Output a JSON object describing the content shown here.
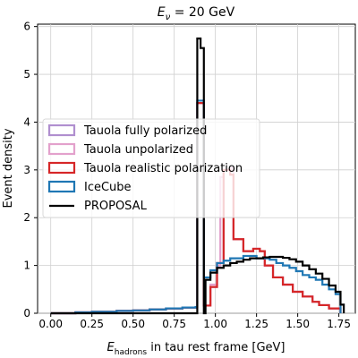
{
  "chart_data": {
    "type": "line",
    "title": "E_ν = 20 GeV",
    "title_main": "E",
    "title_sub": "ν",
    "title_rest": " = 20 GeV",
    "xlabel": "E_hadrons in tau rest frame [GeV]",
    "xlabel_main": "E",
    "xlabel_sub": "hadrons",
    "xlabel_rest": " in tau rest frame [GeV]",
    "ylabel": "Event density",
    "xlim": [
      -0.08,
      1.85
    ],
    "ylim": [
      0,
      6.05
    ],
    "xticks": [
      0.0,
      0.25,
      0.5,
      0.75,
      1.0,
      1.25,
      1.5,
      1.75
    ],
    "xtick_labels": [
      "0.00",
      "0.25",
      "0.50",
      "0.75",
      "1.00",
      "1.25",
      "1.50",
      "1.75"
    ],
    "yticks": [
      0,
      1,
      2,
      3,
      4,
      5,
      6
    ],
    "ytick_labels": [
      "0",
      "1",
      "2",
      "3",
      "4",
      "5",
      "6"
    ],
    "grid": true,
    "legend_position": "center-left",
    "series": [
      {
        "name": "Tauola fully polarized",
        "color": "#b08fcf",
        "style": "step",
        "points": [
          [
            0.0,
            0.0
          ],
          [
            0.15,
            0.02
          ],
          [
            0.25,
            0.03
          ],
          [
            0.4,
            0.05
          ],
          [
            0.5,
            0.06
          ],
          [
            0.6,
            0.08
          ],
          [
            0.7,
            0.1
          ],
          [
            0.8,
            0.12
          ],
          [
            0.88,
            0.13
          ],
          [
            0.89,
            4.4
          ],
          [
            0.93,
            0.16
          ],
          [
            0.97,
            0.55
          ],
          [
            1.01,
            1.05
          ],
          [
            1.05,
            3.0
          ],
          [
            1.09,
            2.9
          ],
          [
            1.11,
            1.55
          ],
          [
            1.17,
            1.3
          ],
          [
            1.23,
            1.35
          ],
          [
            1.27,
            1.3
          ],
          [
            1.3,
            1.0
          ],
          [
            1.35,
            0.75
          ],
          [
            1.41,
            0.6
          ],
          [
            1.47,
            0.45
          ],
          [
            1.53,
            0.35
          ],
          [
            1.59,
            0.24
          ],
          [
            1.63,
            0.17
          ],
          [
            1.69,
            0.1
          ],
          [
            1.76,
            0.0
          ]
        ]
      },
      {
        "name": "Tauola unpolarized",
        "color": "#e3a1cc",
        "style": "step",
        "points": [
          [
            0.0,
            0.0
          ],
          [
            0.15,
            0.02
          ],
          [
            0.25,
            0.03
          ],
          [
            0.4,
            0.05
          ],
          [
            0.5,
            0.06
          ],
          [
            0.6,
            0.08
          ],
          [
            0.7,
            0.1
          ],
          [
            0.8,
            0.12
          ],
          [
            0.88,
            0.13
          ],
          [
            0.89,
            4.4
          ],
          [
            0.93,
            0.16
          ],
          [
            0.97,
            0.6
          ],
          [
            1.01,
            1.0
          ],
          [
            1.03,
            2.85
          ],
          [
            1.05,
            3.0
          ],
          [
            1.09,
            3.05
          ],
          [
            1.11,
            1.55
          ],
          [
            1.17,
            1.3
          ],
          [
            1.23,
            1.35
          ],
          [
            1.27,
            1.3
          ],
          [
            1.3,
            1.0
          ],
          [
            1.35,
            0.75
          ],
          [
            1.41,
            0.6
          ],
          [
            1.47,
            0.45
          ],
          [
            1.53,
            0.35
          ],
          [
            1.59,
            0.24
          ],
          [
            1.63,
            0.17
          ],
          [
            1.69,
            0.1
          ],
          [
            1.76,
            0.0
          ]
        ]
      },
      {
        "name": "Tauola realistic polarization",
        "color": "#d62728",
        "style": "step",
        "points": [
          [
            0.0,
            0.0
          ],
          [
            0.15,
            0.02
          ],
          [
            0.25,
            0.03
          ],
          [
            0.4,
            0.05
          ],
          [
            0.5,
            0.06
          ],
          [
            0.6,
            0.08
          ],
          [
            0.7,
            0.1
          ],
          [
            0.8,
            0.12
          ],
          [
            0.88,
            0.13
          ],
          [
            0.89,
            4.4
          ],
          [
            0.93,
            0.16
          ],
          [
            0.97,
            0.55
          ],
          [
            1.01,
            1.05
          ],
          [
            1.05,
            3.0
          ],
          [
            1.09,
            2.9
          ],
          [
            1.11,
            1.55
          ],
          [
            1.17,
            1.3
          ],
          [
            1.23,
            1.35
          ],
          [
            1.27,
            1.3
          ],
          [
            1.3,
            1.0
          ],
          [
            1.35,
            0.75
          ],
          [
            1.41,
            0.6
          ],
          [
            1.47,
            0.45
          ],
          [
            1.53,
            0.35
          ],
          [
            1.59,
            0.24
          ],
          [
            1.63,
            0.17
          ],
          [
            1.69,
            0.1
          ],
          [
            1.76,
            0.0
          ]
        ]
      },
      {
        "name": "IceCube",
        "color": "#1f77b4",
        "style": "step",
        "points": [
          [
            0.0,
            0.0
          ],
          [
            0.15,
            0.02
          ],
          [
            0.25,
            0.03
          ],
          [
            0.4,
            0.05
          ],
          [
            0.5,
            0.06
          ],
          [
            0.6,
            0.08
          ],
          [
            0.7,
            0.1
          ],
          [
            0.8,
            0.12
          ],
          [
            0.88,
            0.13
          ],
          [
            0.89,
            4.45
          ],
          [
            0.93,
            0.75
          ],
          [
            0.97,
            0.9
          ],
          [
            1.01,
            1.05
          ],
          [
            1.05,
            1.1
          ],
          [
            1.09,
            1.15
          ],
          [
            1.13,
            1.15
          ],
          [
            1.17,
            1.2
          ],
          [
            1.21,
            1.2
          ],
          [
            1.25,
            1.15
          ],
          [
            1.29,
            1.15
          ],
          [
            1.33,
            1.12
          ],
          [
            1.37,
            1.05
          ],
          [
            1.41,
            1.0
          ],
          [
            1.45,
            0.95
          ],
          [
            1.49,
            0.88
          ],
          [
            1.53,
            0.8
          ],
          [
            1.57,
            0.75
          ],
          [
            1.61,
            0.7
          ],
          [
            1.65,
            0.6
          ],
          [
            1.69,
            0.5
          ],
          [
            1.73,
            0.4
          ],
          [
            1.76,
            0.0
          ]
        ]
      },
      {
        "name": "PROPOSAL",
        "color": "#000000",
        "style": "step",
        "points": [
          [
            0.0,
            0.0
          ],
          [
            0.88,
            0.0
          ],
          [
            0.89,
            5.75
          ],
          [
            0.91,
            5.55
          ],
          [
            0.93,
            0.0
          ],
          [
            0.94,
            0.7
          ],
          [
            0.97,
            0.85
          ],
          [
            1.01,
            0.95
          ],
          [
            1.05,
            1.0
          ],
          [
            1.09,
            1.05
          ],
          [
            1.13,
            1.08
          ],
          [
            1.17,
            1.12
          ],
          [
            1.21,
            1.15
          ],
          [
            1.25,
            1.15
          ],
          [
            1.29,
            1.17
          ],
          [
            1.33,
            1.18
          ],
          [
            1.37,
            1.18
          ],
          [
            1.41,
            1.16
          ],
          [
            1.45,
            1.13
          ],
          [
            1.49,
            1.08
          ],
          [
            1.53,
            1.0
          ],
          [
            1.57,
            0.92
          ],
          [
            1.61,
            0.83
          ],
          [
            1.65,
            0.72
          ],
          [
            1.69,
            0.58
          ],
          [
            1.73,
            0.45
          ],
          [
            1.76,
            0.18
          ],
          [
            1.78,
            0.0
          ]
        ]
      }
    ]
  }
}
